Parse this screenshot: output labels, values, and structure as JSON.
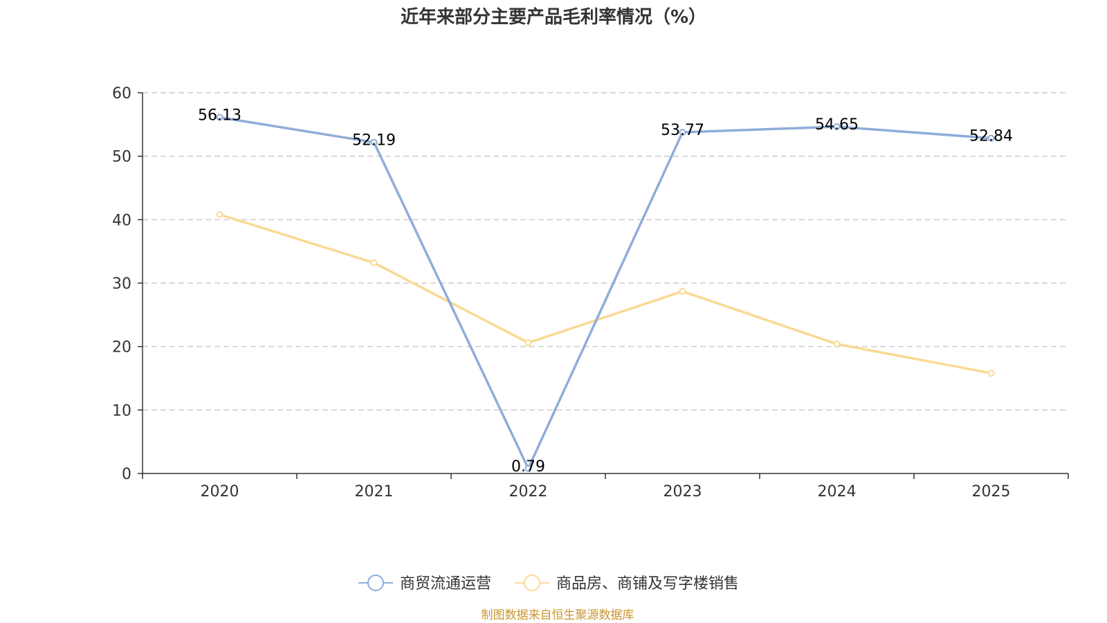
{
  "chart_data": {
    "type": "line",
    "title": "近年来部分主要产品毛利率情况（%）",
    "categories": [
      "2020",
      "2021",
      "2022",
      "2023",
      "2024",
      "2025"
    ],
    "ylim": [
      0,
      60
    ],
    "yticks": [
      0,
      10,
      20,
      30,
      40,
      50,
      60
    ],
    "grid": true,
    "legend_position": "bottom-center",
    "series": [
      {
        "name": "商贸流通运营",
        "color": "#8eadd9",
        "values": [
          56.13,
          52.19,
          0.79,
          53.77,
          54.65,
          52.84
        ],
        "labels": [
          "56.13",
          "52.19",
          "0.79",
          "53.77",
          "54.65",
          "52.84"
        ]
      },
      {
        "name": "商品房、商铺及写字楼销售",
        "color": "#fad994",
        "values": [
          40.8,
          33.2,
          20.6,
          28.7,
          20.4,
          15.8
        ]
      }
    ]
  },
  "source": {
    "text": "制图数据来自恒生聚源数据库",
    "color": "#c8962e"
  }
}
